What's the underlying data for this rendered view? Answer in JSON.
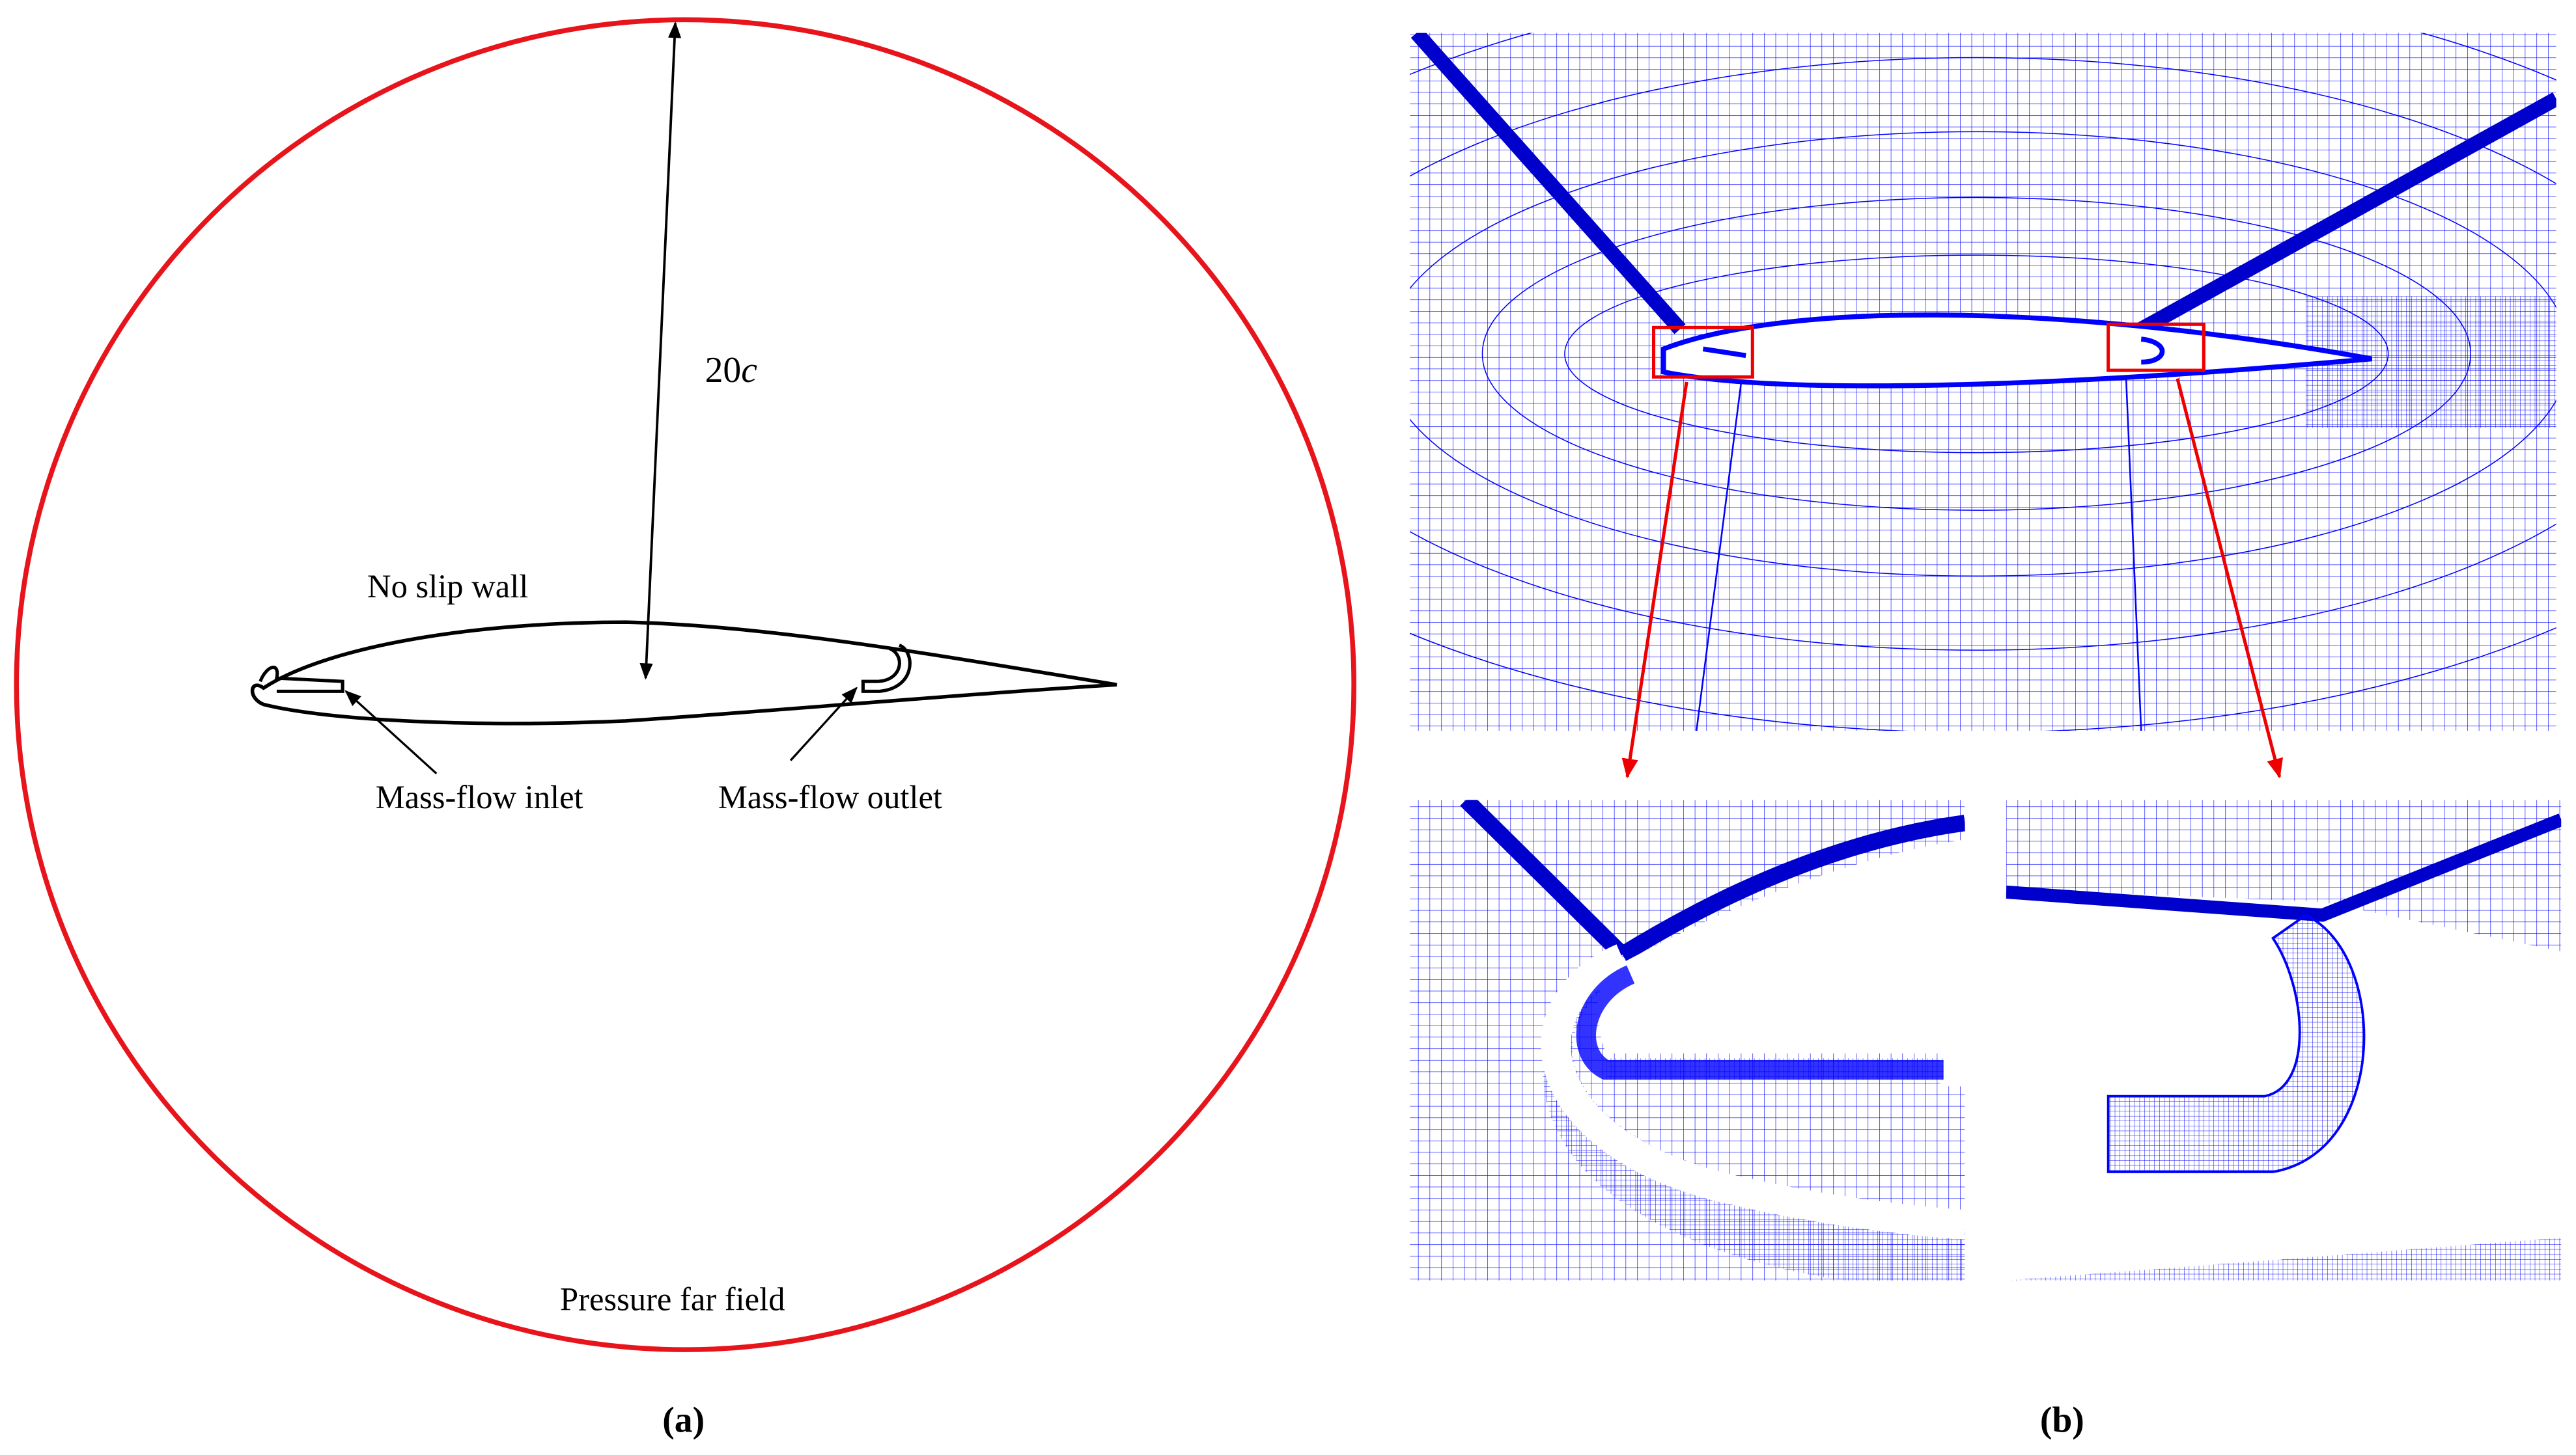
{
  "panel_a": {
    "dimension": {
      "number": "20",
      "symbol": "c"
    },
    "wall_label": "No slip wall",
    "inlet_label": "Mass-flow inlet",
    "outlet_label": "Mass-flow outlet",
    "farfield_label": "Pressure far field",
    "caption": "(a)"
  },
  "panel_b": {
    "caption": "(b)"
  }
}
